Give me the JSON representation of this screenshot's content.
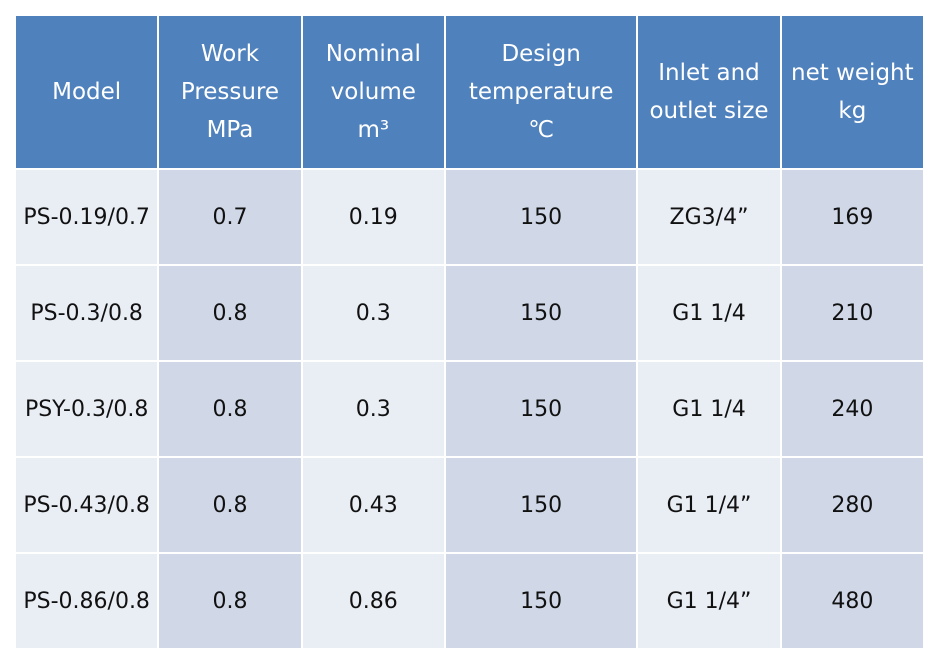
{
  "header": {
    "model": [
      "Model"
    ],
    "work_pressure": [
      "Work",
      "Pressure",
      "MPa"
    ],
    "nominal_volume": [
      "Nominal",
      "volume",
      "m³"
    ],
    "design_temperature": [
      "Design",
      "temperature",
      "℃"
    ],
    "inlet_outlet": [
      "Inlet and",
      "outlet size"
    ],
    "net_weight": [
      "net weight",
      "kg"
    ]
  },
  "rows": [
    {
      "model": "PS-0.19/0.7",
      "pressure": "0.7",
      "volume": "0.19",
      "temperature": "150",
      "size": "ZG3/4”",
      "weight": "169"
    },
    {
      "model": "PS-0.3/0.8",
      "pressure": "0.8",
      "volume": "0.3",
      "temperature": "150",
      "size": "G1 1/4",
      "weight": "210"
    },
    {
      "model": "PSY-0.3/0.8",
      "pressure": "0.8",
      "volume": "0.3",
      "temperature": "150",
      "size": "G1 1/4",
      "weight": "240"
    },
    {
      "model": "PS-0.43/0.8",
      "pressure": "0.8",
      "volume": "0.43",
      "temperature": "150",
      "size": "G1 1/4”",
      "weight": "280"
    },
    {
      "model": "PS-0.86/0.8",
      "pressure": "0.8",
      "volume": "0.86",
      "temperature": "150",
      "size": "G1 1/4”",
      "weight": "480"
    }
  ],
  "colors": {
    "header_bg": "#4f81bd",
    "cell_light": "#e9edf4",
    "cell_dark": "#d0d8e8"
  }
}
